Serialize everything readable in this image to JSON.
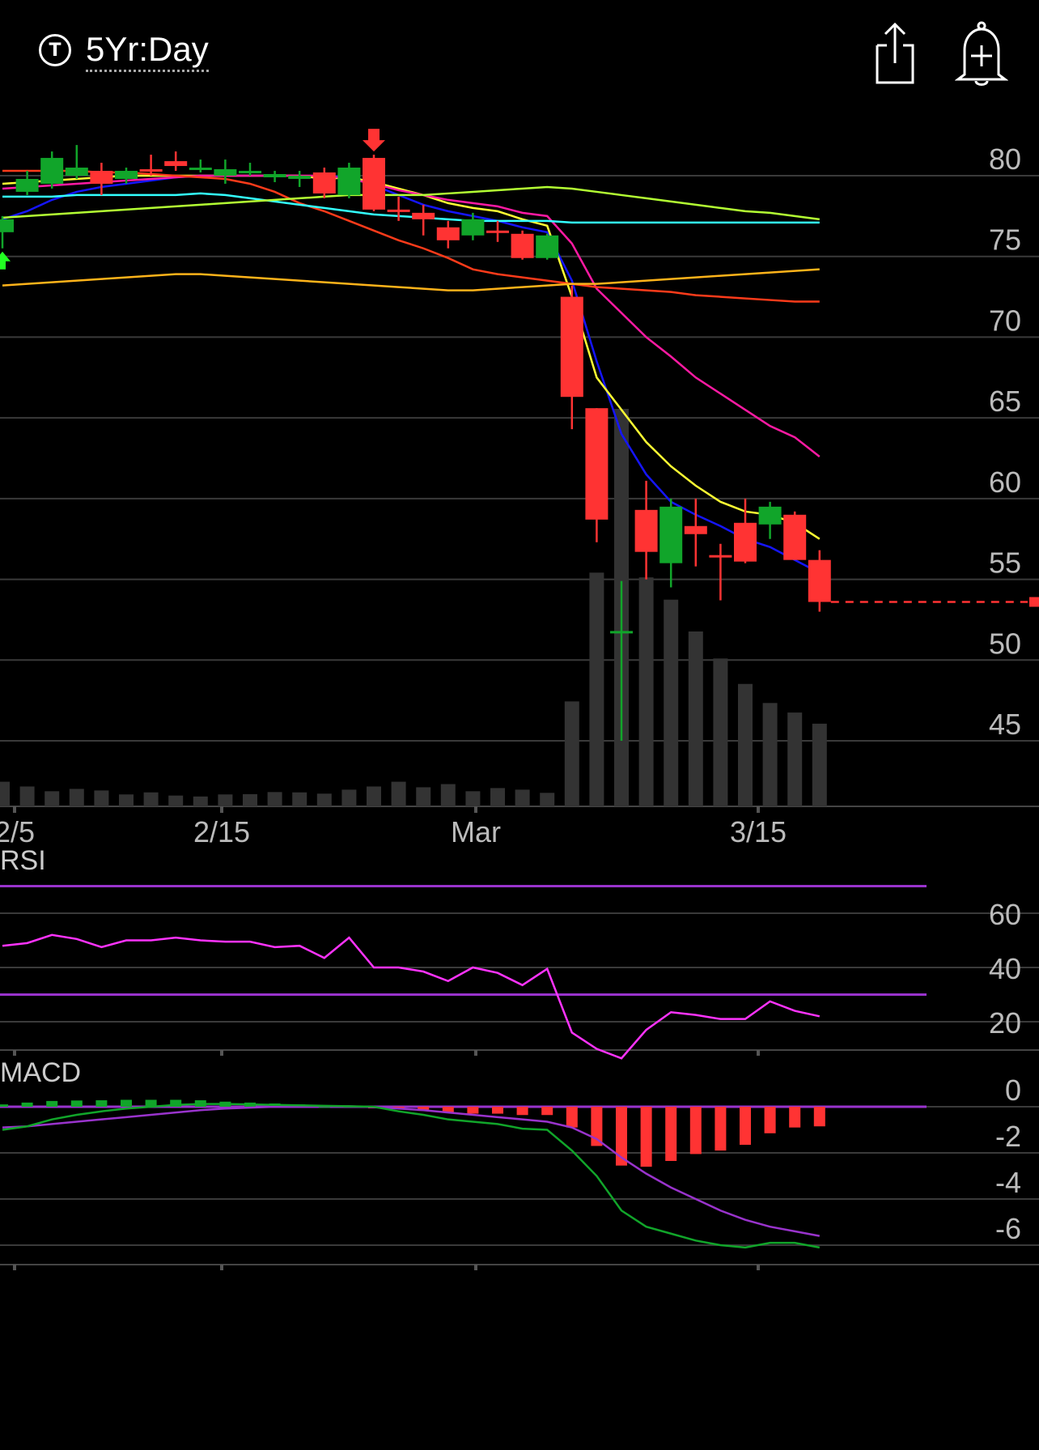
{
  "header": {
    "timeframe_icon": "T",
    "timeframe_label": "5Yr:Day",
    "share_icon": "share-icon",
    "alert_icon": "alert-bell-plus-icon"
  },
  "price_panel": {
    "y_ticks": [
      "80",
      "75",
      "70",
      "65",
      "60",
      "55",
      "50",
      "45"
    ],
    "x_ticks": [
      "2/5",
      "2/15",
      "Mar",
      "3/15"
    ]
  },
  "rsi_panel": {
    "label": "RSI",
    "y_ticks": [
      "60",
      "40",
      "20"
    ]
  },
  "macd_panel": {
    "label": "MACD",
    "y_ticks": [
      "0",
      "-2",
      "-4",
      "-6"
    ]
  },
  "colors": {
    "up": "#11a52a",
    "down": "#ff3333",
    "volume": "#333333",
    "ma_blue": "#1515ff",
    "ma_yellow": "#ffff33",
    "ma_magenta": "#ff1aa3",
    "ma_red": "#ff3b1a",
    "ma_cyan": "#33ffff",
    "ma_lime": "#b3ff33",
    "ma_orange": "#ffb31a",
    "rsi_line": "#ff33ff",
    "rsi_band": "#9933cc",
    "macd_line": "#11a52a",
    "signal_line": "#9933cc"
  },
  "chart_data": {
    "type": "candlestick",
    "price_range": [
      41,
      82
    ],
    "candles": [
      {
        "o": 76.5,
        "h": 77.5,
        "l": 75.5,
        "c": 77.3,
        "up": true
      },
      {
        "o": 79.0,
        "h": 80.3,
        "l": 78.8,
        "c": 79.8,
        "up": true
      },
      {
        "o": 79.5,
        "h": 81.5,
        "l": 79.2,
        "c": 81.1,
        "up": true
      },
      {
        "o": 80.0,
        "h": 81.9,
        "l": 79.8,
        "c": 80.5,
        "up": true
      },
      {
        "o": 80.3,
        "h": 80.8,
        "l": 78.8,
        "c": 79.5,
        "up": false
      },
      {
        "o": 79.8,
        "h": 80.5,
        "l": 79.5,
        "c": 80.3,
        "up": true
      },
      {
        "o": 80.3,
        "h": 81.3,
        "l": 80.0,
        "c": 80.4,
        "up": false
      },
      {
        "o": 80.9,
        "h": 81.5,
        "l": 80.3,
        "c": 80.6,
        "up": false
      },
      {
        "o": 80.4,
        "h": 81.0,
        "l": 80.2,
        "c": 80.5,
        "up": true
      },
      {
        "o": 80.4,
        "h": 81.0,
        "l": 79.5,
        "c": 80.0,
        "up": true
      },
      {
        "o": 80.2,
        "h": 80.8,
        "l": 80.0,
        "c": 80.3,
        "up": true
      },
      {
        "o": 80.1,
        "h": 80.3,
        "l": 79.6,
        "c": 79.9,
        "up": true
      },
      {
        "o": 80.0,
        "h": 80.3,
        "l": 79.3,
        "c": 79.8,
        "up": true
      },
      {
        "o": 80.2,
        "h": 80.5,
        "l": 78.6,
        "c": 78.9,
        "up": false
      },
      {
        "o": 78.8,
        "h": 80.8,
        "l": 78.6,
        "c": 80.5,
        "up": true
      },
      {
        "o": 81.1,
        "h": 81.3,
        "l": 77.8,
        "c": 77.9,
        "up": false
      },
      {
        "o": 77.9,
        "h": 78.7,
        "l": 77.2,
        "c": 77.9,
        "up": false
      },
      {
        "o": 77.7,
        "h": 78.2,
        "l": 76.3,
        "c": 77.3,
        "up": false
      },
      {
        "o": 76.8,
        "h": 77.2,
        "l": 75.5,
        "c": 76.0,
        "up": false
      },
      {
        "o": 76.3,
        "h": 77.7,
        "l": 76.0,
        "c": 77.3,
        "up": true
      },
      {
        "o": 76.6,
        "h": 77.2,
        "l": 75.9,
        "c": 76.6,
        "up": false
      },
      {
        "o": 76.4,
        "h": 76.6,
        "l": 74.8,
        "c": 74.9,
        "up": false
      },
      {
        "o": 74.9,
        "h": 76.4,
        "l": 74.8,
        "c": 76.3,
        "up": true
      },
      {
        "o": 72.5,
        "h": 73.2,
        "l": 64.3,
        "c": 66.3,
        "up": false
      },
      {
        "o": 65.6,
        "h": 65.6,
        "l": 57.3,
        "c": 58.7,
        "up": false
      },
      {
        "o": 51.8,
        "h": 54.9,
        "l": 45.0,
        "c": 51.8,
        "up": true
      },
      {
        "o": 59.3,
        "h": 61.1,
        "l": 55.0,
        "c": 56.7,
        "up": false
      },
      {
        "o": 56.0,
        "h": 60.0,
        "l": 54.5,
        "c": 59.5,
        "up": true
      },
      {
        "o": 58.3,
        "h": 60.0,
        "l": 55.8,
        "c": 57.8,
        "up": false
      },
      {
        "o": 56.5,
        "h": 57.2,
        "l": 53.7,
        "c": 56.5,
        "up": false
      },
      {
        "o": 58.5,
        "h": 60.0,
        "l": 56.0,
        "c": 56.1,
        "up": false
      },
      {
        "o": 58.4,
        "h": 59.8,
        "l": 57.5,
        "c": 59.5,
        "up": true
      },
      {
        "o": 59.0,
        "h": 59.2,
        "l": 56.2,
        "c": 56.2,
        "up": false
      },
      {
        "o": 56.2,
        "h": 56.8,
        "l": 53.0,
        "c": 53.6,
        "up": false
      }
    ],
    "volume": [
      1.55,
      1.25,
      0.95,
      1.1,
      1.0,
      0.75,
      0.88,
      0.68,
      0.62,
      0.75,
      0.77,
      0.9,
      0.88,
      0.8,
      1.05,
      1.25,
      1.55,
      1.2,
      1.4,
      0.95,
      1.15,
      1.05,
      0.85,
      6.6,
      14.7,
      25.0,
      14.4,
      13.0,
      11.0,
      9.3,
      7.7,
      6.5,
      5.9,
      5.2
    ],
    "current_price": 53.6,
    "sell_signal_index": 15,
    "buy_signal_index": 0,
    "rsi": [
      48,
      49,
      52,
      50.5,
      47.5,
      50,
      50,
      51,
      50,
      49.5,
      49.5,
      47.5,
      48,
      43.5,
      51,
      40,
      40,
      38.5,
      35,
      40,
      38,
      33.5,
      39.5,
      16,
      10,
      6.5,
      17,
      23.5,
      22.5,
      21,
      21,
      27.5,
      24,
      22
    ],
    "rsi_levels": [
      70,
      30
    ],
    "macd_hist": [
      0.1,
      0.18,
      0.25,
      0.27,
      0.28,
      0.3,
      0.3,
      0.3,
      0.28,
      0.22,
      0.18,
      0.14,
      0.1,
      0.02,
      0.04,
      -0.05,
      -0.1,
      -0.18,
      -0.26,
      -0.3,
      -0.3,
      -0.36,
      -0.36,
      -0.9,
      -1.7,
      -2.55,
      -2.6,
      -2.35,
      -2.05,
      -1.9,
      -1.65,
      -1.15,
      -0.9,
      -0.85
    ],
    "macd_line": [
      -1.0,
      -0.85,
      -0.55,
      -0.35,
      -0.2,
      -0.08,
      0.0,
      0.08,
      0.12,
      0.12,
      0.1,
      0.08,
      0.06,
      0.04,
      0.02,
      0.0,
      -0.2,
      -0.35,
      -0.55,
      -0.65,
      -0.75,
      -0.95,
      -1.0,
      -1.9,
      -3.0,
      -4.5,
      -5.2,
      -5.5,
      -5.8,
      -6.0,
      -6.1,
      -5.9,
      -5.9,
      -6.1
    ],
    "signal_line": [
      -0.9,
      -0.85,
      -0.75,
      -0.65,
      -0.55,
      -0.45,
      -0.35,
      -0.25,
      -0.15,
      -0.08,
      -0.04,
      0.0,
      0.02,
      0.02,
      0.02,
      -0.02,
      -0.08,
      -0.15,
      -0.25,
      -0.35,
      -0.45,
      -0.55,
      -0.65,
      -0.9,
      -1.4,
      -2.2,
      -2.9,
      -3.5,
      -4.0,
      -4.5,
      -4.9,
      -5.2,
      -5.4,
      -5.6
    ],
    "moving_averages": [
      {
        "key": "ma_blue",
        "values": [
          77.3,
          77.8,
          78.5,
          79.0,
          79.3,
          79.5,
          79.7,
          79.9,
          80.0,
          80.0,
          80.0,
          80.0,
          80.0,
          79.8,
          80.1,
          79.4,
          78.8,
          78.2,
          77.8,
          77.5,
          77.2,
          76.8,
          76.5,
          73.5,
          68.5,
          64.0,
          61.5,
          59.8,
          59.0,
          58.3,
          57.5,
          57.0,
          56.2,
          55.4
        ]
      },
      {
        "key": "ma_yellow",
        "values": [
          79.5,
          79.6,
          79.7,
          79.8,
          79.9,
          80.0,
          80.0,
          80.0,
          80.0,
          80.0,
          80.0,
          80.0,
          80.0,
          79.8,
          79.9,
          79.6,
          79.2,
          78.8,
          78.3,
          78.0,
          77.8,
          77.3,
          76.9,
          72.5,
          67.5,
          65.5,
          63.5,
          62.0,
          60.8,
          59.8,
          59.2,
          59.0,
          58.5,
          57.5
        ]
      },
      {
        "key": "ma_magenta",
        "values": [
          79.2,
          79.3,
          79.4,
          79.5,
          79.6,
          79.7,
          79.8,
          79.9,
          80.0,
          80.0,
          80.0,
          80.0,
          80.0,
          80.0,
          79.8,
          79.5,
          79.1,
          78.8,
          78.5,
          78.3,
          78.1,
          77.7,
          77.5,
          75.8,
          73.0,
          71.5,
          70.0,
          68.8,
          67.5,
          66.5,
          65.5,
          64.5,
          63.8,
          62.6
        ]
      },
      {
        "key": "ma_red",
        "values": [
          80.3,
          80.3,
          80.3,
          80.3,
          80.2,
          80.2,
          80.1,
          80.0,
          79.9,
          79.8,
          79.5,
          79.0,
          78.3,
          77.8,
          77.2,
          76.6,
          76.0,
          75.5,
          74.9,
          74.2,
          73.9,
          73.7,
          73.5,
          73.3,
          73.1,
          73.0,
          72.9,
          72.8,
          72.6,
          72.5,
          72.4,
          72.3,
          72.2,
          72.2
        ]
      },
      {
        "key": "ma_cyan",
        "values": [
          78.7,
          78.7,
          78.7,
          78.8,
          78.8,
          78.8,
          78.8,
          78.8,
          78.9,
          78.8,
          78.6,
          78.4,
          78.2,
          78.0,
          77.8,
          77.6,
          77.5,
          77.4,
          77.3,
          77.2,
          77.2,
          77.2,
          77.2,
          77.1,
          77.1,
          77.1,
          77.1,
          77.1,
          77.1,
          77.1,
          77.1,
          77.1,
          77.1,
          77.1
        ]
      },
      {
        "key": "ma_lime",
        "values": [
          77.4,
          77.5,
          77.6,
          77.7,
          77.8,
          77.9,
          78.0,
          78.1,
          78.2,
          78.3,
          78.4,
          78.5,
          78.6,
          78.7,
          78.8,
          78.8,
          78.8,
          78.8,
          78.9,
          79.0,
          79.1,
          79.2,
          79.3,
          79.2,
          79.0,
          78.8,
          78.6,
          78.4,
          78.2,
          78.0,
          77.8,
          77.7,
          77.5,
          77.3
        ]
      },
      {
        "key": "ma_orange",
        "values": [
          73.2,
          73.3,
          73.4,
          73.5,
          73.6,
          73.7,
          73.8,
          73.9,
          73.9,
          73.8,
          73.7,
          73.6,
          73.5,
          73.4,
          73.3,
          73.2,
          73.1,
          73.0,
          72.9,
          72.9,
          73.0,
          73.1,
          73.2,
          73.3,
          73.3,
          73.4,
          73.5,
          73.6,
          73.7,
          73.8,
          73.9,
          74.0,
          74.1,
          74.2
        ]
      }
    ]
  }
}
